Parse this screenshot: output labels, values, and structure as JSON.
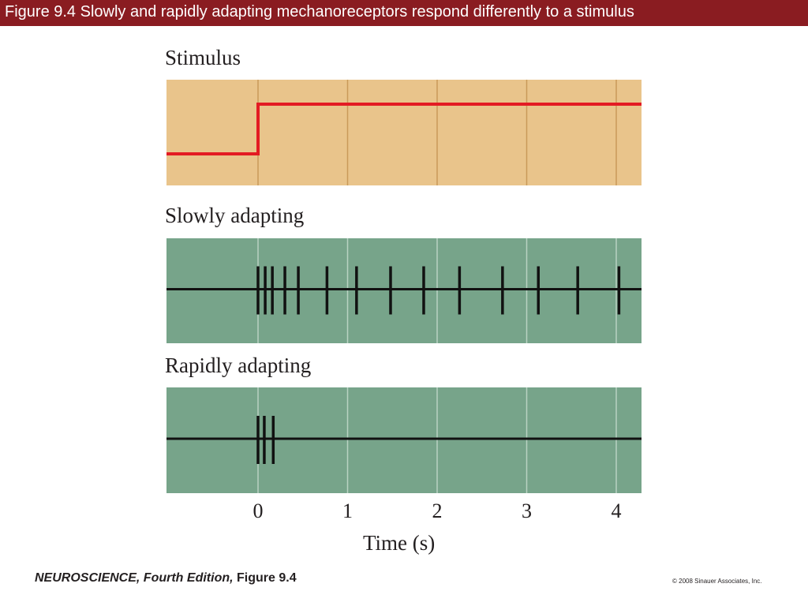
{
  "header": {
    "title": "Figure 9.4  Slowly and rapidly adapting mechanoreceptors respond differently to a stimulus"
  },
  "footer": {
    "book_title": "NEUROSCIENCE,",
    "edition": " Fourth Edition,",
    "figure_ref": " Figure 9.4",
    "copyright": "© 2008 Sinauer Associates, Inc."
  },
  "colors": {
    "title_bar": "#8a1c21",
    "stimulus_bg": "#e9c48b",
    "stimulus_gridline": "#c99a5a",
    "stimulus_trace": "#e31b23",
    "response_bg": "#77a48a",
    "response_gridline": "#b8d2c2",
    "trace": "#111111"
  },
  "chart_data": {
    "type": "line",
    "xlabel": "Time (s)",
    "x_ticks": [
      0,
      1,
      2,
      3,
      4
    ],
    "xlim": [
      -1,
      4.3
    ],
    "panels": [
      {
        "label": "Stimulus",
        "kind": "step",
        "off_level": 0,
        "on_level": 1,
        "step_time": 0
      },
      {
        "label": "Slowly adapting",
        "kind": "spikes",
        "spike_times": [
          0.0,
          0.08,
          0.16,
          0.3,
          0.45,
          0.77,
          1.1,
          1.48,
          1.85,
          2.25,
          2.73,
          3.13,
          3.57,
          4.03
        ]
      },
      {
        "label": "Rapidly adapting",
        "kind": "spikes",
        "spike_times": [
          0.0,
          0.07,
          0.17
        ]
      }
    ]
  }
}
